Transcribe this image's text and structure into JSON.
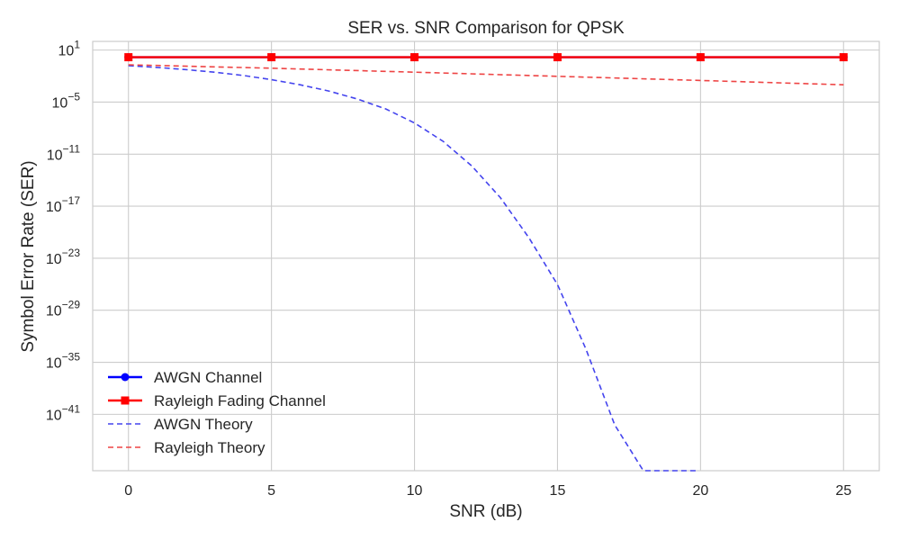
{
  "chart_data": {
    "type": "line",
    "title": "SER vs. SNR Comparison for QPSK",
    "xlabel": "SNR (dB)",
    "ylabel": "Symbol Error Rate (SER)",
    "yscale": "log",
    "xlim": [
      -1.25,
      26.25
    ],
    "ylim_exp": [
      -47.5,
      2
    ],
    "xticks": [
      0,
      5,
      10,
      15,
      20,
      25
    ],
    "ytick_exponents": [
      1,
      -5,
      -11,
      -17,
      -23,
      -29,
      -35,
      -41
    ],
    "grid": true,
    "legend_position": "lower-left",
    "series": [
      {
        "name": "AWGN Channel",
        "color": "#0000ff",
        "style": "solid",
        "marker": "circle",
        "x": [
          0,
          5,
          10,
          15,
          20,
          25
        ],
        "y": [
          1.5,
          1.5,
          1.5,
          1.5,
          1.5,
          1.5
        ]
      },
      {
        "name": "Rayleigh Fading Channel",
        "color": "#ff0000",
        "style": "solid",
        "marker": "square",
        "x": [
          0,
          5,
          10,
          15,
          20,
          25
        ],
        "y": [
          1.5,
          1.5,
          1.5,
          1.5,
          1.5,
          1.5
        ]
      },
      {
        "name": "AWGN Theory",
        "color": "#4444ee",
        "style": "dashed",
        "marker": "none",
        "x": [
          0,
          1,
          2,
          3,
          4,
          5,
          6,
          7,
          8,
          9,
          10,
          11,
          12,
          13,
          14,
          15,
          16,
          17,
          18,
          19,
          19.9
        ],
        "y": [
          0.16,
          0.1,
          0.057,
          0.028,
          0.012,
          0.0039,
          0.001,
          0.00019,
          2.3e-05,
          1.6e-06,
          4e-08,
          3e-10,
          4.5e-13,
          1e-16,
          2.3e-21,
          9e-27,
          3e-34,
          6e-43,
          1e-53,
          4e-67,
          1e-81
        ]
      },
      {
        "name": "Rayleigh Theory",
        "color": "#ee4444",
        "style": "dashed",
        "marker": "none",
        "x": [
          0,
          5,
          10,
          15,
          20,
          25
        ],
        "y": [
          0.2,
          0.08,
          0.028,
          0.0095,
          0.0031,
          0.001
        ]
      }
    ]
  }
}
